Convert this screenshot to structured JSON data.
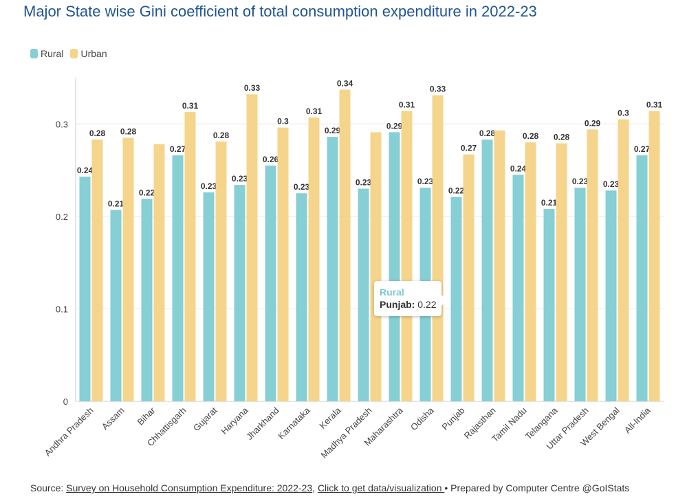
{
  "title": "Major State wise Gini coefficient of total consumption expenditure in 2022-23",
  "colors": {
    "rural": "#86cfd4",
    "urban": "#f5d58c",
    "title": "#1f5590"
  },
  "legend": [
    {
      "name": "Rural",
      "color": "#86cfd4"
    },
    {
      "name": "Urban",
      "color": "#f5d58c"
    }
  ],
  "chart_data": {
    "type": "bar",
    "title": "Major State wise Gini coefficient of total consumption expenditure in 2022-23",
    "xlabel": "",
    "ylabel": "",
    "ylim": [
      0,
      0.35
    ],
    "yticks": [
      0,
      0.1,
      0.2,
      0.3
    ],
    "ytick_labels": [
      "0",
      "0.1",
      "0.2",
      "0.3"
    ],
    "grid": true,
    "legend_position": "top-left",
    "categories": [
      "Andhra Pradesh",
      "Assam",
      "Bihar",
      "Chhattisgarh",
      "Gujarat",
      "Haryana",
      "Jharkhand",
      "Karnataka",
      "Kerala",
      "Madhya Pradesh",
      "Maharashtra",
      "Odisha",
      "Punjab",
      "Rajasthan",
      "Tamil Nadu",
      "Telangana",
      "Uttar Pradesh",
      "West Bengal",
      "All-India"
    ],
    "series": [
      {
        "name": "Rural",
        "values": [
          0.243,
          0.207,
          0.219,
          0.266,
          0.226,
          0.234,
          0.255,
          0.225,
          0.286,
          0.23,
          0.291,
          0.231,
          0.221,
          0.283,
          0.245,
          0.208,
          0.231,
          0.228,
          0.266
        ],
        "labels": [
          "0.24",
          "0.21",
          "0.22",
          "0.27",
          "0.23",
          "0.23",
          "0.26",
          "0.23",
          "0.29",
          "0.23",
          "0.29",
          "0.23",
          "0.22",
          "0.28",
          "0.24",
          "0.21",
          "0.23",
          "0.23",
          "0.27"
        ]
      },
      {
        "name": "Urban",
        "values": [
          0.283,
          0.285,
          0.278,
          0.313,
          0.281,
          0.332,
          0.296,
          0.307,
          0.337,
          0.291,
          0.314,
          0.331,
          0.267,
          0.293,
          0.28,
          0.279,
          0.294,
          0.305,
          0.314
        ],
        "labels": [
          "0.28",
          "0.28",
          "",
          "0.31",
          "0.28",
          "0.33",
          "0.3",
          "0.31",
          "0.34",
          "",
          "0.31",
          "0.33",
          "0.27",
          "",
          "0.28",
          "0.28",
          "0.29",
          "0.3",
          "0.31"
        ]
      }
    ]
  },
  "tooltip": {
    "series": "Rural",
    "label": "Punjab:",
    "value": "0.22"
  },
  "source": {
    "prefix": "Source: ",
    "link1": "Survey on Household Consumption Expenditure: 2022-23",
    "sep": ", ",
    "link2": "Click to get data/visualization ",
    "suffix": " • Prepared by Computer Centre @GoIStats"
  }
}
